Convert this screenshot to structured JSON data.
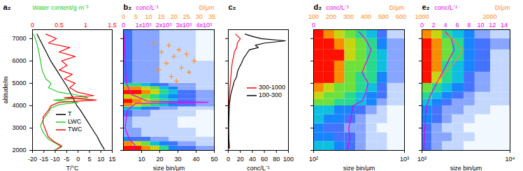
{
  "chart_data": [
    {
      "type": "line",
      "title": "a₂",
      "xlabel": "T/°C",
      "xlim": [
        -20,
        15
      ],
      "xticks": [
        -20,
        -15,
        -10,
        -5,
        0,
        5,
        10,
        15
      ],
      "ylabel": "altitude/m",
      "ylim": [
        2000,
        7400
      ],
      "yticks": [
        2000,
        3000,
        4000,
        5000,
        6000,
        7000
      ],
      "x2label": "Water content/g·m⁻³",
      "x2lim": [
        0,
        1.5
      ],
      "x2ticks": [
        0,
        0.5,
        1,
        1.5
      ],
      "legend": "bottom",
      "series": [
        {
          "name": "T",
          "color": "#000000",
          "y": [
            2050,
            2300,
            2600,
            3000,
            3400,
            3800,
            4000,
            4200,
            4400,
            4800,
            5200,
            5600,
            6000,
            6400,
            6800,
            7200
          ],
          "x": [
            11.5,
            10,
            8.5,
            6,
            3.5,
            1,
            -0.5,
            -1.5,
            -2.5,
            -4.5,
            -7,
            -9.5,
            -12,
            -14,
            -16,
            -18
          ]
        },
        {
          "name": "LWC",
          "color": "#22cc22",
          "axis": "x2",
          "y": [
            7200,
            6800,
            6400,
            6000,
            5600,
            5200,
            5000,
            4800,
            4600,
            4450,
            4350,
            4250,
            4150,
            4050,
            3900,
            3700,
            3400,
            3100,
            2800,
            2500,
            2300,
            2150,
            2000
          ],
          "x": [
            0.02,
            0.08,
            0.12,
            0.15,
            0.18,
            0.25,
            0.35,
            0.3,
            0.5,
            0.9,
            1.05,
            0.4,
            0.85,
            0.5,
            0.35,
            0.3,
            0.2,
            0.15,
            0.2,
            0.3,
            0.45,
            0.55,
            0.4
          ]
        },
        {
          "name": "TWC",
          "color": "#ff0000",
          "axis": "x2",
          "y": [
            7200,
            7000,
            6800,
            6600,
            6400,
            6200,
            6000,
            5800,
            5600,
            5400,
            5200,
            5000,
            4800,
            4600,
            4450,
            4350,
            4250,
            4150,
            4000,
            3800,
            3500,
            3200,
            2900,
            2600,
            2400,
            2200,
            2050
          ],
          "x": [
            0.25,
            0.45,
            0.3,
            0.7,
            0.5,
            0.8,
            0.55,
            0.65,
            0.5,
            0.75,
            0.6,
            0.8,
            0.7,
            0.85,
            1.15,
            0.6,
            1.2,
            0.5,
            0.35,
            0.3,
            0.2,
            0.2,
            0.25,
            0.3,
            0.4,
            0.55,
            0.45
          ]
        }
      ]
    },
    {
      "type": "heatmap",
      "title": "b₂",
      "xlabel": "size bin/μm",
      "xlim": [
        0,
        50
      ],
      "xticks": [
        10,
        20,
        30,
        40,
        50
      ],
      "ylim": [
        2000,
        7400
      ],
      "yticks": [
        2000,
        3000,
        4000,
        5000,
        6000,
        7000
      ],
      "tick_labels": "x",
      "x2label": "D/μm",
      "x2lim": [
        0,
        36
      ],
      "x2ticks": [
        0,
        5,
        10,
        15,
        20,
        25,
        30,
        35
      ],
      "x3label": "conc/L⁻¹",
      "x3lim": [
        0,
        450000
      ],
      "x3ticks": [
        0,
        {
          "value": 100000,
          "label": "1x10⁵"
        },
        {
          "value": 200000,
          "label": "2x10⁵"
        },
        {
          "value": 300000,
          "label": "3x10⁵"
        },
        {
          "value": 400000,
          "label": "4x10⁵"
        }
      ],
      "cells": {
        "x": [
          0,
          5,
          10,
          15,
          20,
          25,
          30,
          40,
          50
        ],
        "y": [
          2000,
          2200,
          2400,
          2600,
          3000,
          3500,
          3800,
          3950,
          4100,
          4300,
          4500,
          4700,
          4850,
          5000,
          6000,
          7400
        ],
        "zlim": [
          0,
          10
        ],
        "values": [
          [
            10,
            10,
            9,
            8,
            6,
            4,
            3,
            2
          ],
          [
            9,
            8,
            7,
            5,
            4,
            3,
            2,
            1
          ],
          [
            4,
            3,
            3,
            2,
            2,
            1,
            1,
            1
          ],
          [
            2,
            2,
            1,
            1,
            1,
            1,
            1,
            0
          ],
          [
            2,
            1,
            1,
            1,
            1,
            1,
            0,
            0
          ],
          [
            3,
            2,
            2,
            1,
            1,
            1,
            1,
            0
          ],
          [
            5,
            5,
            4,
            3,
            2,
            2,
            1,
            1
          ],
          [
            9,
            8,
            7,
            6,
            5,
            4,
            3,
            2
          ],
          [
            10,
            9,
            8,
            7,
            6,
            5,
            3,
            2
          ],
          [
            8,
            8,
            7,
            6,
            5,
            4,
            3,
            2
          ],
          [
            10,
            10,
            9,
            8,
            6,
            5,
            3,
            2
          ],
          [
            9,
            9,
            8,
            7,
            5,
            4,
            2,
            1
          ],
          [
            6,
            6,
            5,
            4,
            3,
            2,
            2,
            1
          ],
          [
            3,
            2,
            2,
            2,
            1,
            1,
            1,
            1
          ],
          [
            3,
            2,
            2,
            2,
            1,
            1,
            1,
            0
          ]
        ]
      },
      "series": [
        {
          "type": "scatter",
          "marker": "plus",
          "color": "#ff8c1a",
          "axis": "x2",
          "x": [
            12,
            18,
            22,
            15,
            25,
            20,
            28,
            17,
            23,
            14,
            26,
            19,
            21
          ],
          "y": [
            6800,
            6700,
            6500,
            6400,
            6300,
            6200,
            6000,
            5900,
            5700,
            5600,
            5500,
            5300,
            5100
          ]
        },
        {
          "type": "line",
          "color": "#e600e6",
          "axis": "x3",
          "x": [
            5000,
            8000,
            15000,
            40000,
            120000,
            420000,
            60000,
            20000,
            8000,
            30000,
            60000,
            40000
          ],
          "y": [
            7200,
            6000,
            5000,
            4500,
            4200,
            4150,
            4100,
            3800,
            3000,
            2500,
            2200,
            2000
          ]
        }
      ]
    },
    {
      "type": "line",
      "title": "c₂",
      "xlabel": "conc/L⁻¹",
      "xlim": [
        0,
        100
      ],
      "xticks": [
        0,
        20,
        40,
        60,
        80,
        100
      ],
      "ylim": [
        2000,
        7400
      ],
      "yticks": [
        2000,
        3000,
        4000,
        5000,
        6000,
        7000
      ],
      "tick_labels": "x",
      "legend": "right",
      "series": [
        {
          "name": "300-1000",
          "color": "#ff0000",
          "y": [
            7200,
            7000,
            6800,
            6600,
            6400,
            6200,
            6000,
            5800,
            5500,
            5200,
            4900,
            4600,
            4300,
            4000,
            3500,
            3000,
            2500,
            2100
          ],
          "x": [
            12,
            20,
            15,
            14,
            10,
            9,
            7,
            6,
            5,
            4,
            3,
            2,
            1.5,
            1,
            0.5,
            0.3,
            0.5,
            1
          ]
        },
        {
          "name": "100-300",
          "color": "#000000",
          "y": [
            7200,
            7100,
            7000,
            6900,
            6800,
            6700,
            6600,
            6500,
            6300,
            6100,
            5900,
            5700,
            5500,
            5300,
            5100,
            4900,
            4700,
            4500,
            4300,
            4100,
            3800,
            3400,
            3000,
            2500,
            2100
          ],
          "x": [
            28,
            40,
            55,
            95,
            60,
            45,
            50,
            35,
            30,
            25,
            22,
            18,
            15,
            14,
            10,
            8,
            6,
            4,
            3,
            2,
            1.5,
            1,
            0.5,
            1,
            2
          ]
        }
      ]
    },
    {
      "type": "heatmap",
      "title": "d₂",
      "xlabel": "size bin/μm",
      "xlim": [
        100,
        1000
      ],
      "log": "x",
      "xticks": [
        {
          "value": 100,
          "label": "10²"
        },
        {
          "value": 1000,
          "label": "10³"
        }
      ],
      "ylim": [
        2000,
        7400
      ],
      "yticks": [
        2000,
        3000,
        4000,
        5000,
        6000,
        7000
      ],
      "tick_labels": "x",
      "x2label": "D/μm",
      "x2lim": [
        100,
        620
      ],
      "x2ticks": [
        100,
        200,
        300,
        400,
        500,
        600
      ],
      "x3label": "conc/L⁻¹",
      "x3lim": [
        0,
        150
      ],
      "x3ticks": [
        0
      ],
      "cells": {
        "x": [
          100,
          130,
          170,
          220,
          290,
          380,
          500,
          650,
          1000
        ],
        "y": [
          2000,
          2400,
          2800,
          3200,
          3600,
          4000,
          4300,
          4600,
          5000,
          5500,
          6000,
          6500,
          7000,
          7400
        ],
        "zlim": [
          0,
          10
        ],
        "values": [
          [
            5,
            5,
            4,
            3,
            2,
            1,
            1,
            0
          ],
          [
            4,
            4,
            3,
            3,
            2,
            1,
            1,
            0
          ],
          [
            4,
            3,
            3,
            2,
            2,
            1,
            0,
            0
          ],
          [
            5,
            4,
            4,
            3,
            2,
            1,
            1,
            0
          ],
          [
            5,
            5,
            4,
            4,
            3,
            2,
            1,
            0
          ],
          [
            7,
            7,
            6,
            6,
            5,
            4,
            2,
            1
          ],
          [
            8,
            7,
            7,
            6,
            5,
            4,
            3,
            1
          ],
          [
            9,
            8,
            7,
            7,
            6,
            5,
            3,
            1
          ],
          [
            10,
            10,
            9,
            7,
            6,
            6,
            4,
            2
          ],
          [
            10,
            10,
            9,
            7,
            7,
            6,
            5,
            2
          ],
          [
            10,
            10,
            10,
            8,
            7,
            6,
            5,
            2
          ],
          [
            10,
            10,
            9,
            8,
            7,
            6,
            4,
            2
          ],
          [
            10,
            9,
            8,
            7,
            6,
            5,
            3,
            1
          ]
        ]
      },
      "series": [
        {
          "type": "line",
          "color": "#e600e6",
          "axis": "x3",
          "x": [
            55,
            60,
            58,
            62,
            65,
            80,
            85,
            90,
            80,
            88,
            95,
            85,
            75
          ],
          "y": [
            2000,
            2500,
            3000,
            3500,
            4000,
            4200,
            4500,
            5000,
            5500,
            6000,
            6500,
            7000,
            7300
          ]
        }
      ]
    },
    {
      "type": "heatmap",
      "title": "e₂",
      "xlabel": "size bin/μm",
      "xlim": [
        1000,
        10000
      ],
      "log": "x",
      "xticks": [
        {
          "value": 1000,
          "label": "10³"
        },
        {
          "value": 10000,
          "label": "10⁴"
        }
      ],
      "ylim": [
        2000,
        7400
      ],
      "yticks": [
        2000,
        3000,
        4000,
        5000,
        6000,
        7000
      ],
      "tick_labels": "x",
      "x2label": "D/μm",
      "x2lim": [
        1000,
        2300
      ],
      "x2ticks": [
        1000,
        2000
      ],
      "x3label": "conc/L⁻¹",
      "x3lim": [
        0,
        15
      ],
      "x3ticks": [
        0,
        2,
        4,
        6,
        8,
        10,
        12,
        14
      ],
      "cells": {
        "x": [
          1000,
          1300,
          1700,
          2200,
          3000,
          4000,
          6000,
          10000
        ],
        "y": [
          2000,
          2400,
          2800,
          3200,
          3600,
          4000,
          4300,
          4600,
          5000,
          5500,
          6000,
          6500,
          7000,
          7400
        ],
        "zlim": [
          0,
          10
        ],
        "values": [
          [
            3,
            2,
            1,
            1,
            0,
            0,
            0
          ],
          [
            3,
            2,
            2,
            1,
            1,
            0,
            0
          ],
          [
            3,
            2,
            1,
            1,
            0,
            0,
            0
          ],
          [
            4,
            3,
            2,
            1,
            1,
            0,
            0
          ],
          [
            4,
            3,
            2,
            2,
            1,
            1,
            0
          ],
          [
            5,
            4,
            3,
            2,
            2,
            1,
            1
          ],
          [
            6,
            5,
            4,
            3,
            2,
            1,
            1
          ],
          [
            7,
            6,
            5,
            4,
            3,
            2,
            1
          ],
          [
            10,
            8,
            6,
            5,
            3,
            2,
            1
          ],
          [
            10,
            9,
            6,
            5,
            4,
            3,
            1
          ],
          [
            10,
            9,
            7,
            6,
            4,
            3,
            1
          ],
          [
            10,
            9,
            7,
            6,
            4,
            3,
            2
          ],
          [
            9,
            8,
            6,
            5,
            4,
            2,
            1
          ]
        ]
      },
      "series": [
        {
          "type": "line",
          "color": "#e600e6",
          "axis": "x3",
          "x": [
            0.3,
            0.4,
            0.5,
            0.6,
            0.8,
            1.5,
            2.5,
            3.5,
            4.5,
            5.5,
            5,
            4
          ],
          "y": [
            2000,
            2500,
            3000,
            3500,
            4000,
            4500,
            5000,
            5500,
            6000,
            6500,
            7000,
            7300
          ]
        },
        {
          "type": "line",
          "color": "#ff8c1a",
          "axis": "x2",
          "x": [
            1200,
            1350,
            1500,
            1600,
            1450,
            1300
          ],
          "y": [
            5000,
            5500,
            6000,
            6500,
            7000,
            7300
          ]
        }
      ]
    }
  ]
}
